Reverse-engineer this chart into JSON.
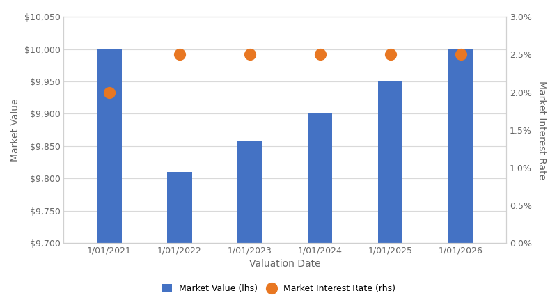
{
  "categories": [
    "1/01/2021",
    "1/01/2022",
    "1/01/2023",
    "1/01/2024",
    "1/01/2025",
    "1/01/2026"
  ],
  "market_values": [
    10000,
    9810,
    9857,
    9902,
    9951,
    10000
  ],
  "interest_rates": [
    0.02,
    0.025,
    0.025,
    0.025,
    0.025,
    0.025
  ],
  "bar_color": "#4472C4",
  "dot_color": "#E87722",
  "xlabel": "Valuation Date",
  "ylabel_left": "Market Value",
  "ylabel_right": "Market Interest Rate",
  "ylim_left": [
    9700,
    10050
  ],
  "ylim_right": [
    0.0,
    0.03
  ],
  "yticks_left": [
    9700,
    9750,
    9800,
    9850,
    9900,
    9950,
    10000,
    10050
  ],
  "yticks_right": [
    0.0,
    0.005,
    0.01,
    0.015,
    0.02,
    0.025,
    0.03
  ],
  "legend_labels": [
    "Market Value (lhs)",
    "Market Interest Rate (rhs)"
  ],
  "background_color": "#ffffff",
  "grid_color": "#d9d9d9",
  "spine_color": "#d0d0d0",
  "text_color": "#666666",
  "title": ""
}
